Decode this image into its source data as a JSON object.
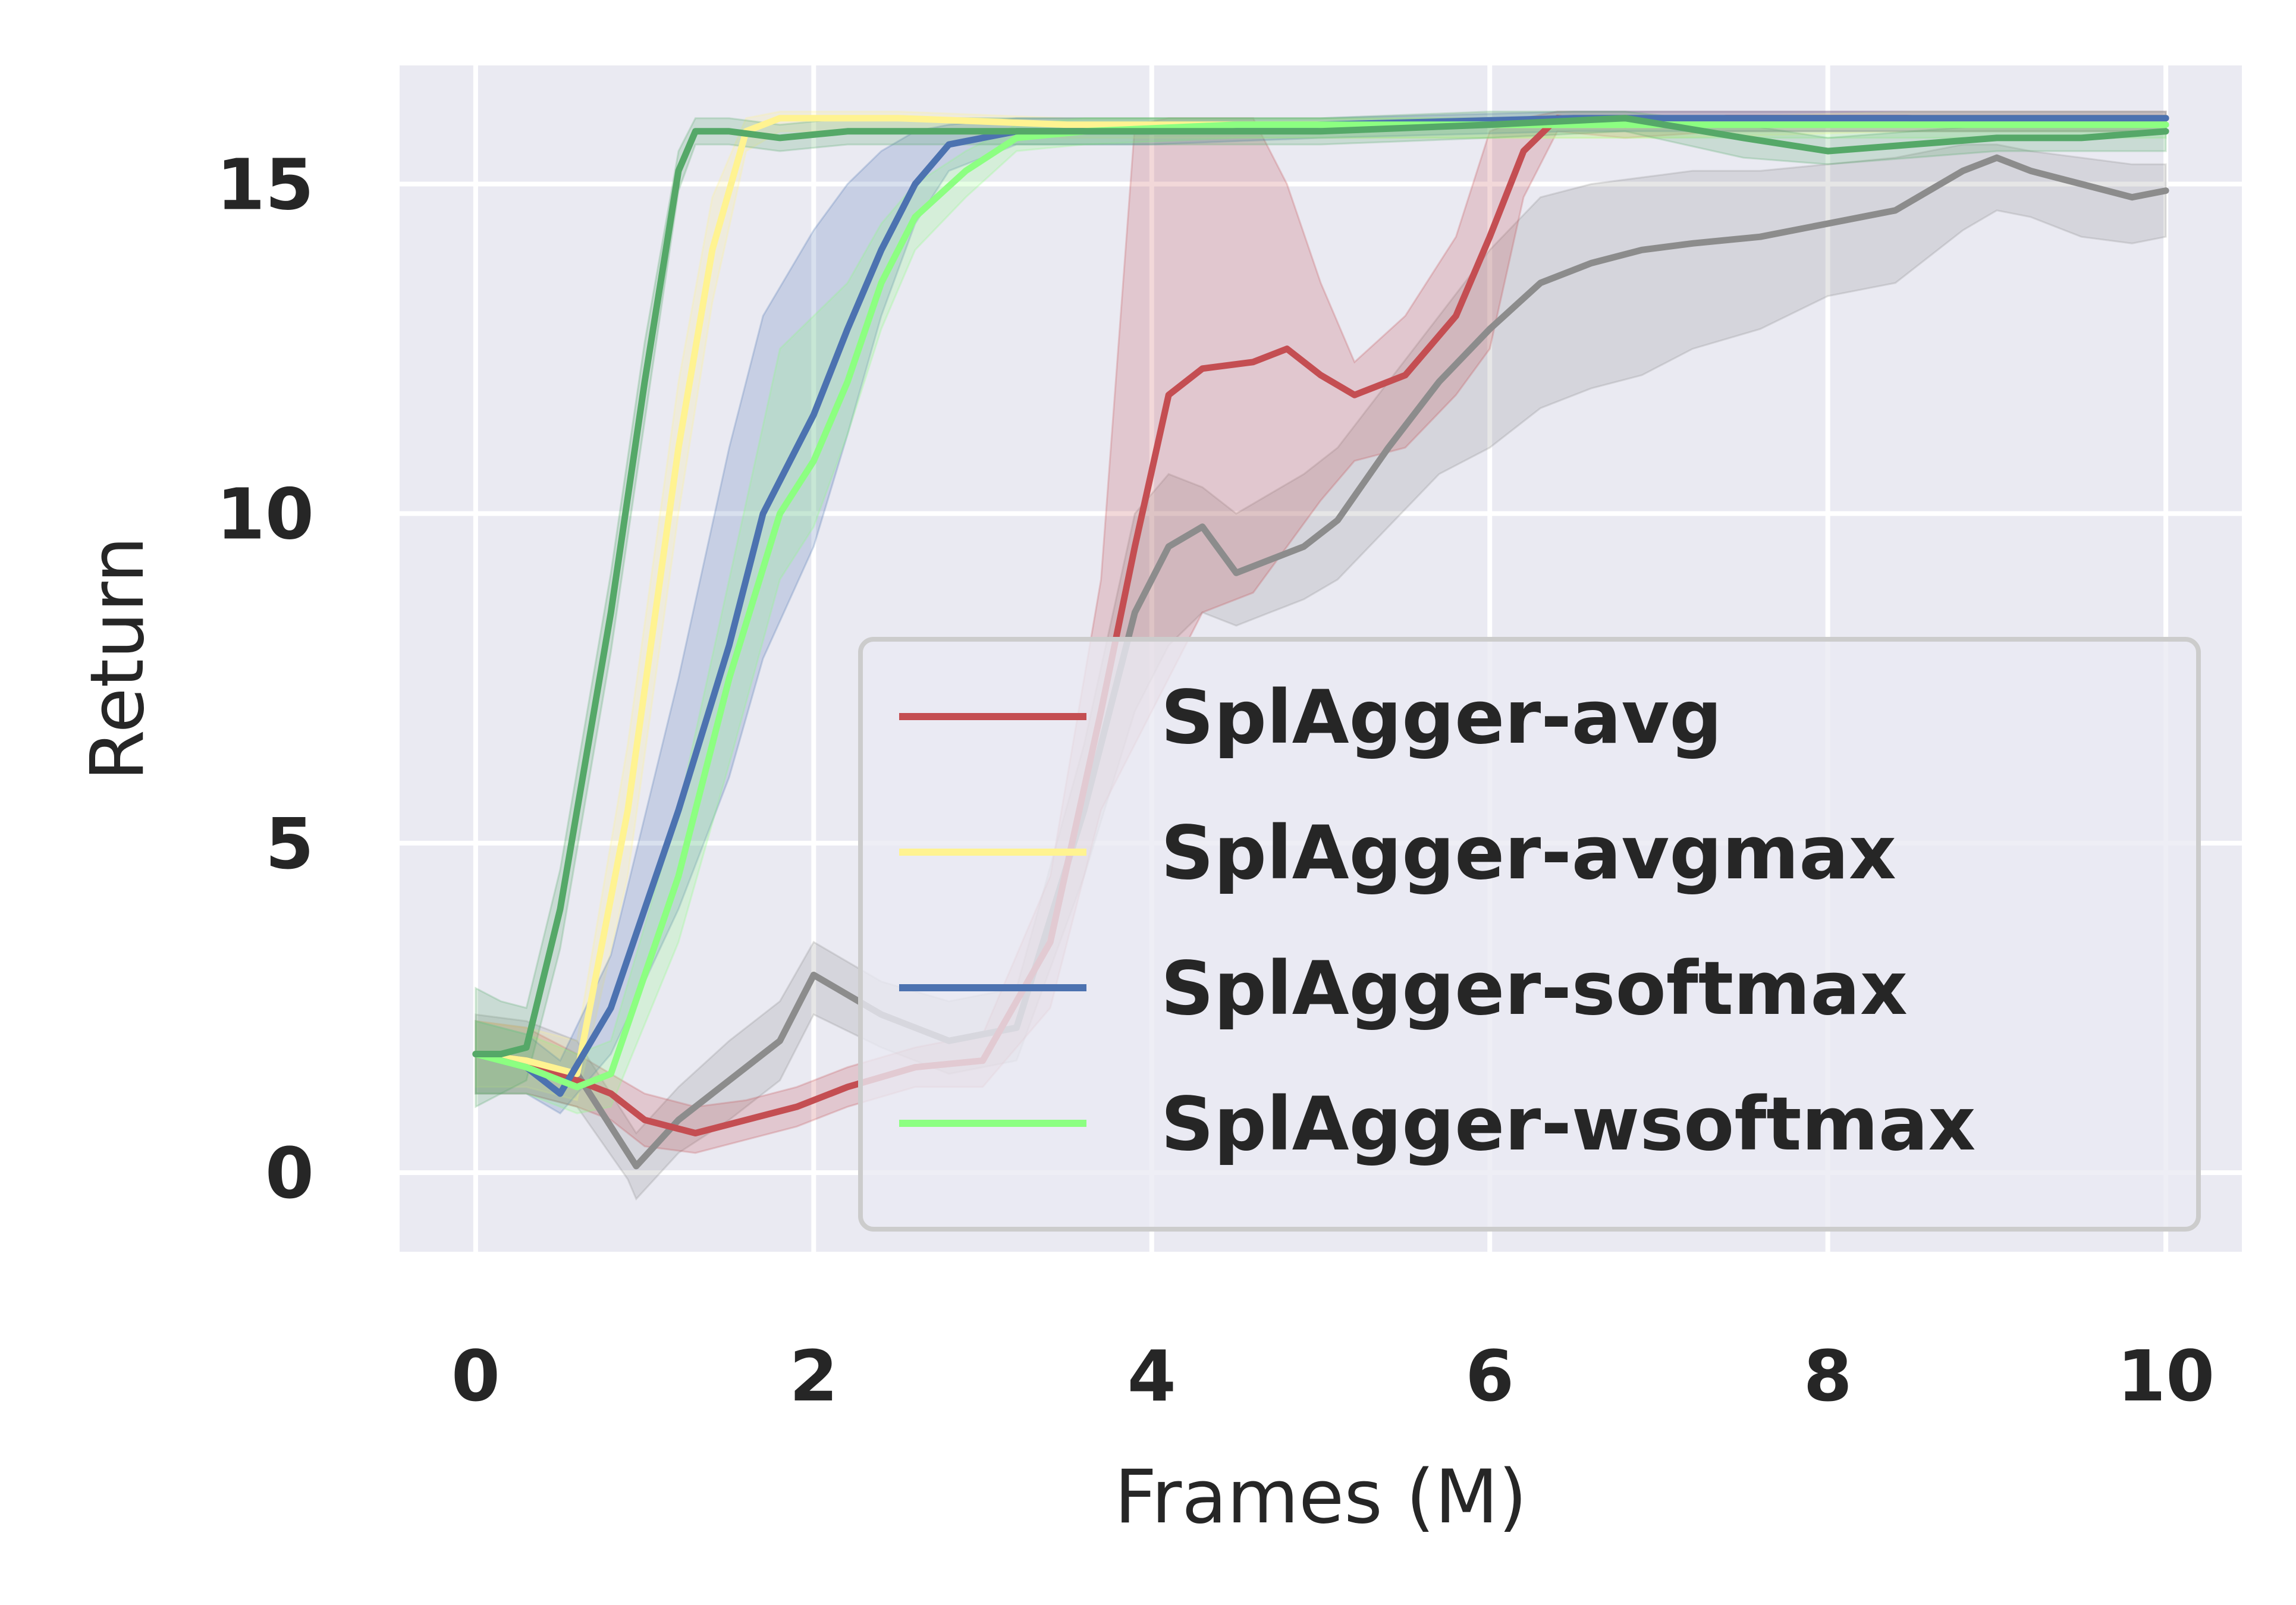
{
  "chart_data": {
    "type": "line",
    "title": "",
    "xlabel": "Frames (M)",
    "ylabel": "Return",
    "xlim": [
      -0.45,
      10.45
    ],
    "ylim": [
      -1.2,
      16.8
    ],
    "x_ticks": [
      0,
      2,
      4,
      6,
      8,
      10
    ],
    "y_ticks": [
      0,
      5,
      10,
      15
    ],
    "grid": true,
    "legend_position": "lower-right",
    "series": [
      {
        "name": "",
        "color": "#8c8c8c",
        "x": [
          0,
          0.3,
          0.6,
          0.9,
          0.95,
          1.2,
          1.5,
          1.8,
          2.0,
          2.4,
          2.8,
          3.2,
          3.6,
          3.9,
          4.1,
          4.3,
          4.5,
          4.7,
          4.9,
          5.1,
          5.4,
          5.7,
          6.0,
          6.3,
          6.6,
          6.9,
          7.2,
          7.6,
          8.0,
          8.4,
          8.8,
          9.0,
          9.2,
          9.5,
          9.8,
          10.0
        ],
        "y": [
          1.8,
          1.7,
          1.5,
          0.3,
          0.1,
          0.8,
          1.4,
          2.0,
          3.0,
          2.4,
          2.0,
          2.2,
          5.5,
          8.5,
          9.5,
          9.8,
          9.1,
          9.3,
          9.5,
          9.9,
          11.0,
          12.0,
          12.8,
          13.5,
          13.8,
          14.0,
          14.1,
          14.2,
          14.4,
          14.6,
          15.2,
          15.4,
          15.2,
          15.0,
          14.8,
          14.9
        ],
        "lower": [
          1.2,
          1.2,
          1.0,
          -0.1,
          -0.4,
          0.3,
          0.8,
          1.4,
          2.4,
          1.9,
          1.5,
          1.7,
          4.5,
          7.0,
          8.0,
          8.5,
          8.3,
          8.5,
          8.7,
          9.0,
          9.8,
          10.6,
          11.0,
          11.6,
          11.9,
          12.1,
          12.5,
          12.8,
          13.3,
          13.5,
          14.3,
          14.6,
          14.5,
          14.2,
          14.1,
          14.2
        ],
        "upper": [
          2.4,
          2.3,
          2.0,
          0.8,
          0.6,
          1.3,
          2.0,
          2.6,
          3.5,
          2.9,
          2.6,
          2.8,
          6.5,
          10.0,
          10.6,
          10.4,
          10.0,
          10.3,
          10.6,
          11.0,
          12.0,
          13.0,
          14.0,
          14.8,
          15.0,
          15.1,
          15.2,
          15.2,
          15.3,
          15.4,
          15.6,
          15.6,
          15.5,
          15.4,
          15.3,
          15.3
        ]
      },
      {
        "name": "SplAgger-avg",
        "color": "#c44e52",
        "x": [
          0,
          0.3,
          0.6,
          0.8,
          1.0,
          1.3,
          1.6,
          1.9,
          2.2,
          2.6,
          3.0,
          3.4,
          3.7,
          3.9,
          4.1,
          4.3,
          4.6,
          4.8,
          5.0,
          5.2,
          5.5,
          5.8,
          6.0,
          6.2,
          6.4,
          6.8,
          7.4,
          8.0,
          8.6,
          9.2,
          10.0
        ],
        "y": [
          1.8,
          1.7,
          1.4,
          1.2,
          0.8,
          0.6,
          0.8,
          1.0,
          1.3,
          1.6,
          1.7,
          3.5,
          7.0,
          9.5,
          11.8,
          12.2,
          12.3,
          12.5,
          12.1,
          11.8,
          12.1,
          13.0,
          14.2,
          15.5,
          16.0,
          15.9,
          16.0,
          16.0,
          16.0,
          16.0,
          16.0
        ],
        "lower": [
          1.2,
          1.2,
          1.0,
          0.8,
          0.4,
          0.3,
          0.5,
          0.7,
          1.0,
          1.3,
          1.3,
          2.5,
          5.5,
          6.5,
          7.5,
          8.5,
          8.8,
          9.5,
          10.2,
          10.8,
          11.0,
          11.8,
          12.5,
          14.8,
          15.8,
          15.7,
          15.8,
          15.8,
          15.8,
          15.8,
          15.8
        ],
        "upper": [
          2.3,
          2.2,
          1.8,
          1.5,
          1.2,
          1.0,
          1.1,
          1.3,
          1.6,
          1.9,
          2.1,
          4.5,
          9.0,
          15.9,
          16.0,
          16.0,
          16.0,
          15.0,
          13.5,
          12.3,
          13.0,
          14.2,
          15.8,
          16.0,
          16.1,
          16.1,
          16.1,
          16.1,
          16.1,
          16.1,
          16.1
        ]
      },
      {
        "name": "SplAgger-avgmax",
        "color": "#fff391",
        "x": [
          0,
          0.3,
          0.6,
          0.9,
          1.2,
          1.4,
          1.6,
          1.8,
          2.5,
          3.5,
          5.0,
          7.0,
          8.5,
          10.0
        ],
        "y": [
          1.8,
          1.7,
          1.5,
          5.5,
          11.0,
          14.0,
          15.8,
          16.0,
          16.0,
          15.9,
          15.9,
          15.9,
          16.0,
          16.0
        ],
        "lower": [
          1.3,
          1.3,
          1.1,
          4.5,
          10.0,
          13.2,
          15.5,
          15.8,
          15.8,
          15.7,
          15.7,
          15.7,
          15.8,
          15.8
        ],
        "upper": [
          2.3,
          2.2,
          2.0,
          6.5,
          12.0,
          14.8,
          16.0,
          16.1,
          16.1,
          16.0,
          16.0,
          16.0,
          16.1,
          16.1
        ]
      },
      {
        "name": "SplAgger-softmax",
        "color": "#4c72b0",
        "x": [
          0,
          0.3,
          0.5,
          0.8,
          1.2,
          1.5,
          1.7,
          2.0,
          2.2,
          2.4,
          2.6,
          2.8,
          3.2,
          4.0,
          5.0,
          6.5,
          7.5,
          8.5,
          10.0
        ],
        "y": [
          1.8,
          1.6,
          1.2,
          2.5,
          5.5,
          8.0,
          10.0,
          11.5,
          12.8,
          14.0,
          15.0,
          15.6,
          15.8,
          15.8,
          15.9,
          16.0,
          16.0,
          16.0,
          16.0
        ],
        "lower": [
          1.2,
          1.2,
          0.9,
          1.8,
          4.0,
          6.0,
          7.8,
          9.5,
          11.2,
          13.0,
          14.4,
          15.2,
          15.6,
          15.6,
          15.7,
          15.8,
          15.8,
          15.8,
          15.8
        ],
        "upper": [
          2.3,
          2.1,
          1.7,
          3.3,
          7.5,
          11.0,
          13.0,
          14.3,
          15.0,
          15.5,
          15.8,
          15.9,
          16.0,
          16.0,
          16.0,
          16.1,
          16.1,
          16.1,
          16.1
        ]
      },
      {
        "name": "SplAgger-wsoftmax",
        "color": "#8cff81",
        "x": [
          0,
          0.3,
          0.6,
          0.8,
          1.2,
          1.5,
          1.8,
          2.0,
          2.2,
          2.4,
          2.6,
          2.9,
          3.2,
          3.6,
          4.5,
          6.0,
          8.0,
          10.0
        ],
        "y": [
          1.8,
          1.6,
          1.3,
          1.5,
          4.5,
          7.5,
          10.0,
          10.8,
          12.0,
          13.5,
          14.5,
          15.2,
          15.7,
          15.8,
          15.9,
          15.9,
          15.9,
          15.9
        ],
        "lower": [
          1.2,
          1.2,
          0.9,
          1.0,
          3.5,
          6.2,
          9.0,
          9.8,
          11.2,
          12.8,
          14.0,
          14.8,
          15.5,
          15.6,
          15.7,
          15.7,
          15.7,
          15.7
        ],
        "upper": [
          2.3,
          2.1,
          1.8,
          2.0,
          5.5,
          9.0,
          12.5,
          13.0,
          13.5,
          14.4,
          15.0,
          15.5,
          15.9,
          16.0,
          16.0,
          16.0,
          16.0,
          16.0
        ]
      },
      {
        "name": "",
        "color": "#55a868",
        "x": [
          0,
          0.15,
          0.3,
          0.5,
          0.8,
          1.0,
          1.2,
          1.3,
          1.5,
          1.8,
          2.2,
          2.6,
          3.0,
          3.5,
          4.0,
          5.0,
          6.0,
          6.8,
          7.5,
          8.0,
          8.5,
          9.0,
          9.5,
          10.0
        ],
        "y": [
          1.8,
          1.8,
          1.9,
          4.0,
          8.5,
          12.0,
          15.2,
          15.8,
          15.8,
          15.7,
          15.8,
          15.8,
          15.8,
          15.8,
          15.8,
          15.8,
          15.9,
          16.0,
          15.7,
          15.5,
          15.6,
          15.7,
          15.7,
          15.8
        ],
        "lower": [
          1.0,
          1.2,
          1.4,
          3.4,
          7.9,
          11.4,
          14.9,
          15.6,
          15.6,
          15.5,
          15.6,
          15.6,
          15.6,
          15.6,
          15.6,
          15.6,
          15.7,
          15.8,
          15.4,
          15.3,
          15.4,
          15.5,
          15.5,
          15.5
        ],
        "upper": [
          2.8,
          2.6,
          2.5,
          4.6,
          9.1,
          12.6,
          15.5,
          16.0,
          16.0,
          15.9,
          16.0,
          16.0,
          16.0,
          16.0,
          16.0,
          16.0,
          16.1,
          16.1,
          15.9,
          15.7,
          15.8,
          15.9,
          15.9,
          16.0
        ]
      }
    ]
  }
}
